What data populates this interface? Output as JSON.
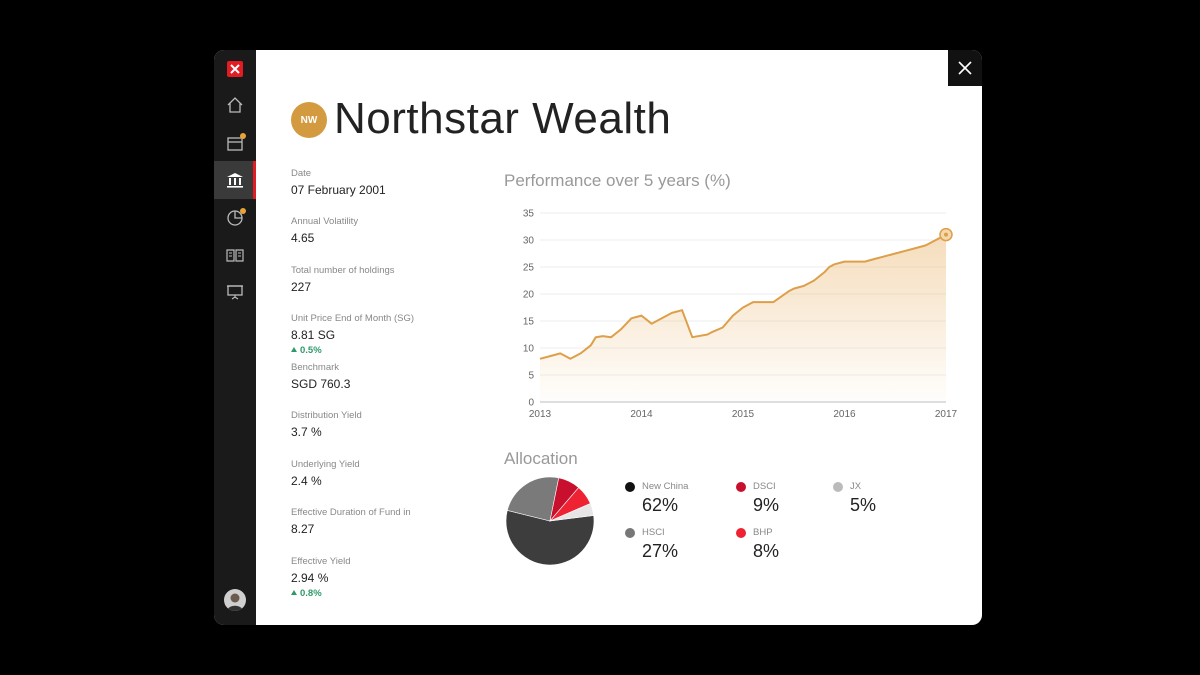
{
  "fund": {
    "badge": "NW",
    "name": "Northstar Wealth"
  },
  "metrics": [
    {
      "label": "Date",
      "value": "07 February 2001"
    },
    {
      "label": "Annual Volatility",
      "value": "4.65"
    },
    {
      "label": "Total number of holdings",
      "value": "227"
    },
    {
      "label": "Unit Price End of Month (SG)",
      "value": "8.81 SG",
      "change": "0.5%"
    },
    {
      "label": "Benchmark",
      "value": "SGD 760.3"
    },
    {
      "label": "Distribution Yield",
      "value": "3.7 %"
    },
    {
      "label": "Underlying Yield",
      "value": "2.4 %"
    },
    {
      "label": "Effective Duration of Fund in",
      "value": "8.27"
    },
    {
      "label": "Effective Yield",
      "value": "2.94 %",
      "change": "0.8%"
    }
  ],
  "performance": {
    "title": "Performance over 5 years (%)"
  },
  "allocation": {
    "title": "Allocation",
    "items": [
      {
        "name": "New China",
        "value": "62%",
        "color": "#111111"
      },
      {
        "name": "DSCI",
        "value": "9%",
        "color": "#c8102e"
      },
      {
        "name": "JX",
        "value": "5%",
        "color": "#bbbbbb"
      },
      {
        "name": "HSCI",
        "value": "27%",
        "color": "#777777"
      },
      {
        "name": "BHP",
        "value": "8%",
        "color": "#ee2233"
      }
    ]
  },
  "colors": {
    "accent": "#e31b23",
    "gold": "#d49a3f",
    "positive": "#2e9a6a"
  },
  "chart_data": [
    {
      "type": "area",
      "title": "Performance over 5 years (%)",
      "xlabel": "",
      "ylabel": "",
      "xlim": [
        2013,
        2017
      ],
      "ylim": [
        0,
        35
      ],
      "x_ticks": [
        "2013",
        "2014",
        "2015",
        "2016",
        "2017"
      ],
      "y_ticks": [
        "0",
        "5",
        "10",
        "15",
        "20",
        "25",
        "30",
        "35"
      ],
      "grid": true,
      "x": [
        2013.0,
        2013.1,
        2013.2,
        2013.3,
        2013.4,
        2013.5,
        2013.55,
        2013.62,
        2013.7,
        2013.8,
        2013.9,
        2014.0,
        2014.1,
        2014.2,
        2014.3,
        2014.4,
        2014.5,
        2014.65,
        2014.7,
        2014.8,
        2014.9,
        2015.0,
        2015.1,
        2015.2,
        2015.3,
        2015.45,
        2015.5,
        2015.6,
        2015.7,
        2015.8,
        2015.85,
        2015.9,
        2016.0,
        2016.1,
        2016.2,
        2016.3,
        2016.4,
        2016.5,
        2016.6,
        2016.7,
        2016.8,
        2016.9,
        2017.0
      ],
      "y": [
        8,
        8.5,
        9,
        8,
        9,
        10.5,
        12,
        12.2,
        12,
        13.5,
        15.5,
        16,
        14.5,
        15.5,
        16.5,
        17,
        12,
        12.5,
        13,
        13.8,
        16,
        17.5,
        18.5,
        18.5,
        18.5,
        20.5,
        21,
        21.5,
        22.5,
        24,
        25,
        25.5,
        26,
        26,
        26,
        26.5,
        27,
        27.5,
        28,
        28.5,
        29,
        30,
        31
      ]
    },
    {
      "type": "pie",
      "title": "Allocation",
      "labels": [
        "New China",
        "HSCI",
        "DSCI",
        "BHP",
        "JX"
      ],
      "values": [
        62,
        27,
        9,
        8,
        5
      ]
    }
  ]
}
